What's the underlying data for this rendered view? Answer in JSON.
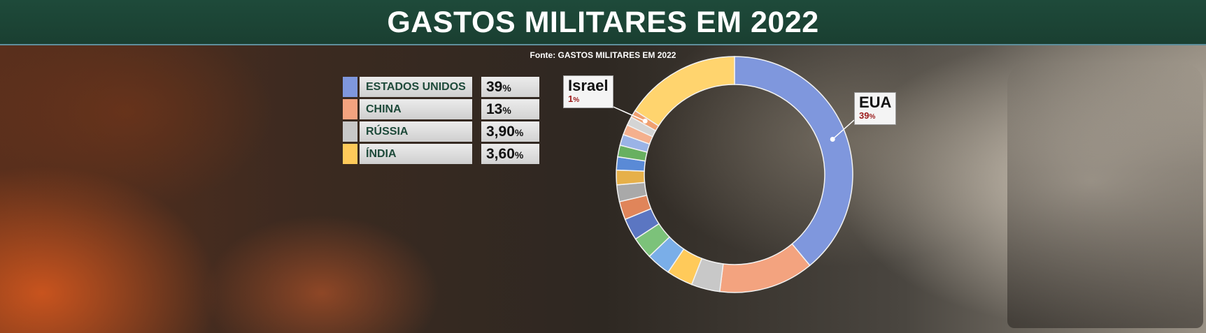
{
  "title": "GASTOS MILITARES EM 2022",
  "source": "Fonte: GASTOS MILITARES EM 2022",
  "legend": [
    {
      "name": "ESTADOS UNIDOS",
      "value": "39",
      "unit": "%",
      "color": "#7f97dd"
    },
    {
      "name": "CHINA",
      "value": "13",
      "unit": "%",
      "color": "#f3a37f"
    },
    {
      "name": "RÚSSIA",
      "value": "3,90",
      "unit": "%",
      "color": "#c8c8c8"
    },
    {
      "name": "ÍNDIA",
      "value": "3,60",
      "unit": "%",
      "color": "#ffca5a"
    }
  ],
  "callouts": {
    "eua": {
      "name": "EUA",
      "value": "39",
      "unit": "%"
    },
    "israel": {
      "name": "Israel",
      "value": "1",
      "unit": "%"
    }
  },
  "chart_data": {
    "type": "pie",
    "donut": true,
    "categories": [
      "EUA",
      "China",
      "Rússia",
      "Índia",
      "",
      "",
      "",
      "",
      "",
      "",
      "",
      "",
      "",
      "",
      "",
      "Israel",
      ""
    ],
    "values": [
      39,
      13,
      3.9,
      3.6,
      3.3,
      3.0,
      3.0,
      2.5,
      2.3,
      2.0,
      1.8,
      1.6,
      1.5,
      1.4,
      1.2,
      1.0,
      15.9
    ],
    "colors": [
      "#7f97dd",
      "#f3a37f",
      "#c8c8c8",
      "#ffca5a",
      "#7aaee8",
      "#7cc27a",
      "#5b76c2",
      "#e0855a",
      "#a9a9a9",
      "#e6b04a",
      "#5a8ad6",
      "#68b060",
      "#9ab3e6",
      "#f4b08e",
      "#d4d4d4",
      "#f0a070",
      "#ffd46e"
    ]
  }
}
